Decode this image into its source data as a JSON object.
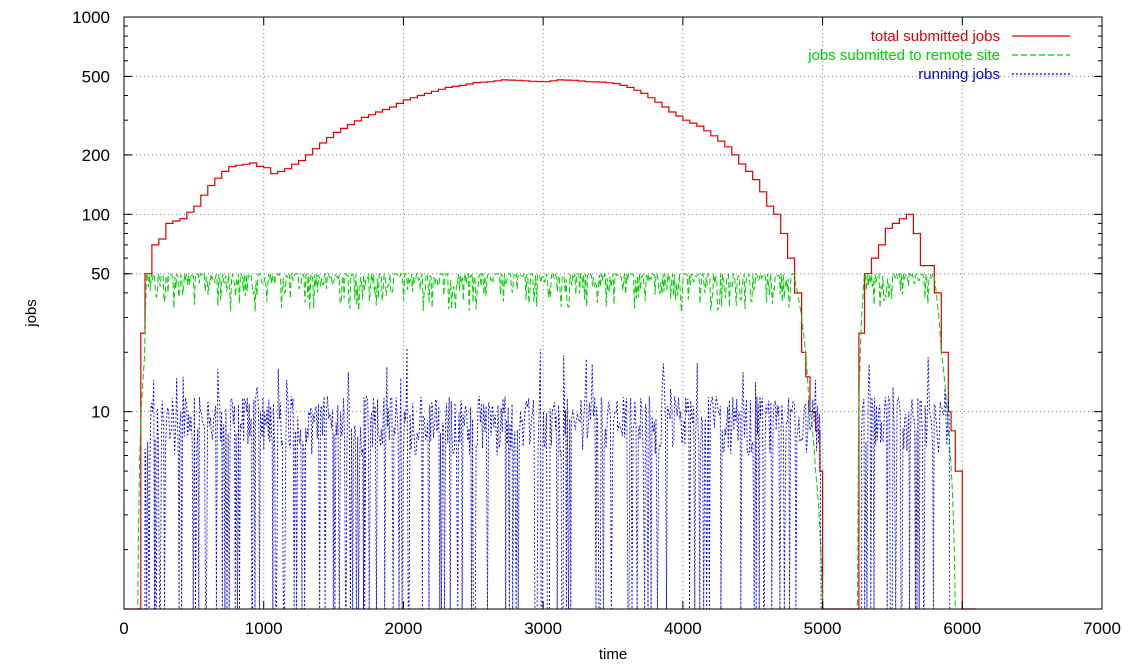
{
  "chart_data": {
    "type": "line",
    "title": "",
    "xlabel": "time",
    "ylabel": "jobs",
    "xlim": [
      0,
      7000
    ],
    "ylim": [
      1,
      1000
    ],
    "y_scale": "log",
    "grid": true,
    "legend_position": "top-right",
    "x_ticks": [
      0,
      1000,
      2000,
      3000,
      4000,
      5000,
      6000,
      7000
    ],
    "y_ticks": [
      10,
      50,
      100,
      200,
      500,
      1000
    ],
    "colors": {
      "total": "#e00000",
      "remote": "#00d000",
      "running": "#0000e0"
    },
    "series": [
      {
        "name": "total submitted jobs",
        "key": "total",
        "style": "solid",
        "x": [
          0,
          100,
          120,
          150,
          200,
          250,
          300,
          400,
          500,
          600,
          700,
          800,
          900,
          1000,
          1100,
          1200,
          1300,
          1400,
          1500,
          1600,
          1700,
          1800,
          1900,
          2000,
          2100,
          2200,
          2300,
          2400,
          2500,
          2600,
          2700,
          2800,
          2900,
          3000,
          3100,
          3200,
          3300,
          3400,
          3500,
          3600,
          3700,
          3800,
          3900,
          4000,
          4100,
          4200,
          4300,
          4400,
          4500,
          4600,
          4650,
          4700,
          4750,
          4800,
          4850,
          4880,
          4910,
          4950,
          4980,
          5000,
          5250,
          5260,
          5300,
          5350,
          5400,
          5450,
          5500,
          5550,
          5600,
          5650,
          5700,
          5750,
          5800,
          5850,
          5900,
          5920,
          5950,
          6000,
          6100
        ],
        "y": [
          1,
          1,
          25,
          50,
          70,
          75,
          90,
          95,
          110,
          140,
          165,
          180,
          175,
          170,
          160,
          175,
          200,
          230,
          260,
          285,
          310,
          330,
          350,
          380,
          400,
          420,
          440,
          450,
          465,
          470,
          480,
          478,
          472,
          470,
          480,
          478,
          470,
          468,
          460,
          440,
          410,
          370,
          330,
          300,
          280,
          250,
          220,
          180,
          150,
          110,
          100,
          80,
          60,
          40,
          20,
          15,
          10,
          8,
          5,
          1,
          1,
          25,
          50,
          60,
          70,
          85,
          90,
          95,
          100,
          80,
          55,
          55,
          40,
          20,
          10,
          8,
          5,
          1,
          1
        ]
      },
      {
        "name": "jobs submitted to remote site",
        "key": "remote",
        "style": "dashed",
        "x": [
          0,
          100,
          150,
          160,
          300,
          1000,
          2000,
          3000,
          4000,
          4800,
          4850,
          4900,
          4950,
          5000,
          5250,
          5270,
          5300,
          5800,
          5850,
          5900,
          5950,
          6100
        ],
        "y": [
          1,
          1,
          20,
          50,
          47,
          46,
          45,
          46,
          46,
          47,
          30,
          12,
          5,
          1,
          1,
          20,
          50,
          48,
          20,
          8,
          1,
          1
        ],
        "note_noise": true
      },
      {
        "name": "running jobs",
        "key": "running",
        "style": "dotted",
        "x_range": [
          150,
          4990
        ],
        "x_range2": [
          5280,
          5910
        ],
        "typical_peak": 12,
        "max_peak": 22
      }
    ]
  }
}
